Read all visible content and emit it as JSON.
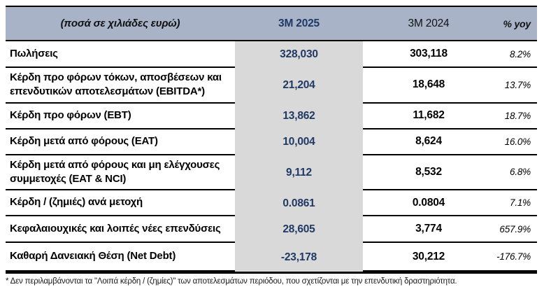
{
  "colors": {
    "header_bg": "#a8b3c8",
    "accent_navy": "#1f3864",
    "highlight_column_bg": "#d9d9d9"
  },
  "table": {
    "header": {
      "label": "(ποσά σε χιλιάδες ευρώ)",
      "col_2025": "3M 2025",
      "col_2024": "3M 2024",
      "col_yoy": "% yoy"
    },
    "rows": [
      {
        "label": "Πωλήσεις",
        "v2025": "328,030",
        "v2024": "303,118",
        "yoy": "8.2%"
      },
      {
        "label": "Κέρδη προ φόρων τόκων, αποσβέσεων και επενδυτικών αποτελεσμάτων (EBITDA*)",
        "v2025": "21,204",
        "v2024": "18,648",
        "yoy": "13.7%"
      },
      {
        "label": "Κέρδη προ φόρων (EBT)",
        "v2025": "13,862",
        "v2024": "11,682",
        "yoy": "18.7%"
      },
      {
        "label": "Κέρδη μετά από φόρους (EAT)",
        "v2025": "10,004",
        "v2024": "8,624",
        "yoy": "16.0%"
      },
      {
        "label": "Κέρδη μετά από φόρους και μη ελέγχουσες συμμετοχές (EAT & NCI)",
        "v2025": "9,112",
        "v2024": "8,532",
        "yoy": "6.8%"
      },
      {
        "label": "Κέρδη / (ζημιές) ανά μετοχή",
        "v2025": "0.0861",
        "v2024": "0.0804",
        "yoy": "7.1%"
      },
      {
        "label": "Κεφαλαιουχικές και λοιπές νέες επενδύσεις",
        "v2025": "28,605",
        "v2024": "3,774",
        "yoy": "657.9%"
      },
      {
        "label": "Καθαρή Δανειακή Θέση (Net Debt)",
        "v2025": "-23,178",
        "v2024": "30,212",
        "yoy": "-176.7%"
      }
    ]
  },
  "footnote": "* Δεν περιλαμβάνονται τα \"Λοιπά κέρδη / (ζημίες)\" των αποτελεσμάτων περιόδου, που σχετίζονται με την επενδυτική δραστηριότητα."
}
